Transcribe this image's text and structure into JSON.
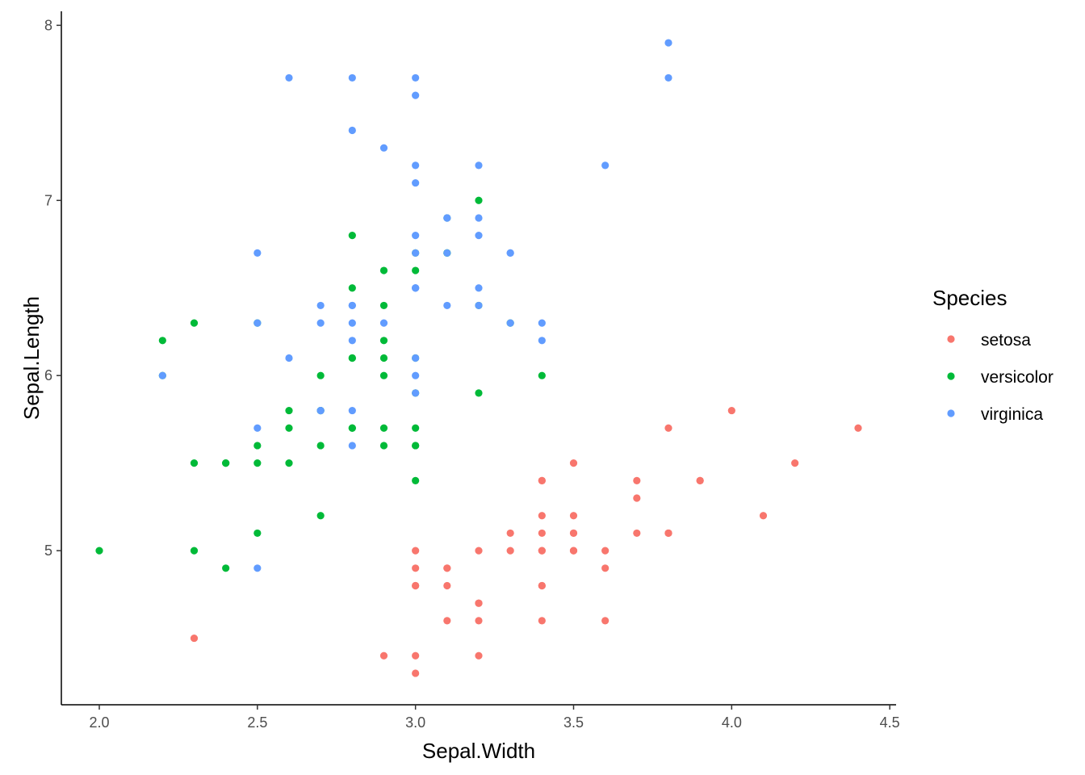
{
  "chart_data": {
    "type": "scatter",
    "title": "",
    "xlabel": "Sepal.Width",
    "ylabel": "Sepal.Length",
    "xlim": [
      1.88,
      4.52
    ],
    "ylim": [
      4.12,
      8.08
    ],
    "x_ticks": [
      2.0,
      2.5,
      3.0,
      3.5,
      4.0,
      4.5
    ],
    "x_tick_labels": [
      "2.0",
      "2.5",
      "3.0",
      "3.5",
      "4.0",
      "4.5"
    ],
    "y_ticks": [
      5,
      6,
      7,
      8
    ],
    "y_tick_labels": [
      "5",
      "6",
      "7",
      "8"
    ],
    "grid": false,
    "legend": {
      "title": "Species",
      "position": "right"
    },
    "series": [
      {
        "name": "setosa",
        "color": "#F8766D",
        "points": [
          [
            3.5,
            5.1
          ],
          [
            3.0,
            4.9
          ],
          [
            3.2,
            4.7
          ],
          [
            3.1,
            4.6
          ],
          [
            3.6,
            5.0
          ],
          [
            3.9,
            5.4
          ],
          [
            3.4,
            4.6
          ],
          [
            3.4,
            5.0
          ],
          [
            2.9,
            4.4
          ],
          [
            3.1,
            4.9
          ],
          [
            3.7,
            5.4
          ],
          [
            3.4,
            4.8
          ],
          [
            3.0,
            4.8
          ],
          [
            3.0,
            4.3
          ],
          [
            4.0,
            5.8
          ],
          [
            4.4,
            5.7
          ],
          [
            3.9,
            5.4
          ],
          [
            3.5,
            5.1
          ],
          [
            3.8,
            5.7
          ],
          [
            3.8,
            5.1
          ],
          [
            3.4,
            5.4
          ],
          [
            3.7,
            5.1
          ],
          [
            3.6,
            4.6
          ],
          [
            3.3,
            5.1
          ],
          [
            3.4,
            4.8
          ],
          [
            3.0,
            5.0
          ],
          [
            3.4,
            5.0
          ],
          [
            3.5,
            5.2
          ],
          [
            3.4,
            5.2
          ],
          [
            3.2,
            4.7
          ],
          [
            3.1,
            4.8
          ],
          [
            3.4,
            5.4
          ],
          [
            4.1,
            5.2
          ],
          [
            4.2,
            5.5
          ],
          [
            3.1,
            4.9
          ],
          [
            3.2,
            5.0
          ],
          [
            3.5,
            5.5
          ],
          [
            3.6,
            4.9
          ],
          [
            3.0,
            4.4
          ],
          [
            3.4,
            5.1
          ],
          [
            3.5,
            5.0
          ],
          [
            2.3,
            4.5
          ],
          [
            3.2,
            4.4
          ],
          [
            3.5,
            5.0
          ],
          [
            3.8,
            5.1
          ],
          [
            3.0,
            4.8
          ],
          [
            3.8,
            5.1
          ],
          [
            3.2,
            4.6
          ],
          [
            3.7,
            5.3
          ],
          [
            3.3,
            5.0
          ]
        ]
      },
      {
        "name": "versicolor",
        "color": "#00BA38",
        "points": [
          [
            3.2,
            7.0
          ],
          [
            3.2,
            6.4
          ],
          [
            3.1,
            6.9
          ],
          [
            2.3,
            5.5
          ],
          [
            2.8,
            6.5
          ],
          [
            2.8,
            5.7
          ],
          [
            3.3,
            6.3
          ],
          [
            2.4,
            4.9
          ],
          [
            2.9,
            6.6
          ],
          [
            2.7,
            5.2
          ],
          [
            2.0,
            5.0
          ],
          [
            3.0,
            5.9
          ],
          [
            2.2,
            6.0
          ],
          [
            2.9,
            6.1
          ],
          [
            2.9,
            5.6
          ],
          [
            3.1,
            6.7
          ],
          [
            3.0,
            5.6
          ],
          [
            2.7,
            5.8
          ],
          [
            2.2,
            6.2
          ],
          [
            2.5,
            5.6
          ],
          [
            3.2,
            5.9
          ],
          [
            2.8,
            6.1
          ],
          [
            2.5,
            6.3
          ],
          [
            2.8,
            6.1
          ],
          [
            2.9,
            6.4
          ],
          [
            3.0,
            6.6
          ],
          [
            2.8,
            6.8
          ],
          [
            3.0,
            6.7
          ],
          [
            2.9,
            6.0
          ],
          [
            2.6,
            5.7
          ],
          [
            2.4,
            5.5
          ],
          [
            2.4,
            5.5
          ],
          [
            2.7,
            5.8
          ],
          [
            2.7,
            6.0
          ],
          [
            3.0,
            5.4
          ],
          [
            3.4,
            6.0
          ],
          [
            3.1,
            6.7
          ],
          [
            2.3,
            6.3
          ],
          [
            3.0,
            5.6
          ],
          [
            2.5,
            5.5
          ],
          [
            2.6,
            5.5
          ],
          [
            3.0,
            6.1
          ],
          [
            2.6,
            5.8
          ],
          [
            2.3,
            5.0
          ],
          [
            2.7,
            5.6
          ],
          [
            3.0,
            5.7
          ],
          [
            2.9,
            5.7
          ],
          [
            2.9,
            6.2
          ],
          [
            2.5,
            5.1
          ],
          [
            2.8,
            5.7
          ]
        ]
      },
      {
        "name": "virginica",
        "color": "#619CFF",
        "points": [
          [
            3.3,
            6.3
          ],
          [
            2.7,
            5.8
          ],
          [
            3.0,
            7.1
          ],
          [
            2.9,
            6.3
          ],
          [
            3.0,
            6.5
          ],
          [
            3.0,
            7.6
          ],
          [
            2.5,
            4.9
          ],
          [
            2.9,
            7.3
          ],
          [
            2.5,
            6.7
          ],
          [
            3.6,
            7.2
          ],
          [
            3.2,
            6.5
          ],
          [
            2.7,
            6.4
          ],
          [
            3.0,
            6.8
          ],
          [
            2.5,
            5.7
          ],
          [
            2.8,
            5.8
          ],
          [
            3.2,
            6.4
          ],
          [
            3.0,
            6.5
          ],
          [
            3.8,
            7.7
          ],
          [
            2.6,
            7.7
          ],
          [
            2.2,
            6.0
          ],
          [
            3.2,
            6.9
          ],
          [
            2.8,
            5.6
          ],
          [
            2.8,
            7.7
          ],
          [
            2.7,
            6.3
          ],
          [
            3.3,
            6.7
          ],
          [
            3.2,
            7.2
          ],
          [
            2.8,
            6.2
          ],
          [
            3.0,
            6.1
          ],
          [
            2.8,
            6.4
          ],
          [
            3.0,
            7.2
          ],
          [
            2.8,
            7.4
          ],
          [
            3.8,
            7.9
          ],
          [
            2.8,
            6.4
          ],
          [
            2.8,
            6.3
          ],
          [
            2.6,
            6.1
          ],
          [
            3.0,
            7.7
          ],
          [
            3.4,
            6.3
          ],
          [
            3.1,
            6.4
          ],
          [
            3.0,
            6.0
          ],
          [
            3.1,
            6.9
          ],
          [
            3.1,
            6.7
          ],
          [
            3.1,
            6.9
          ],
          [
            2.7,
            5.8
          ],
          [
            3.2,
            6.8
          ],
          [
            3.3,
            6.7
          ],
          [
            3.0,
            6.7
          ],
          [
            2.5,
            6.3
          ],
          [
            3.0,
            6.5
          ],
          [
            3.4,
            6.2
          ],
          [
            3.0,
            5.9
          ]
        ]
      }
    ]
  }
}
